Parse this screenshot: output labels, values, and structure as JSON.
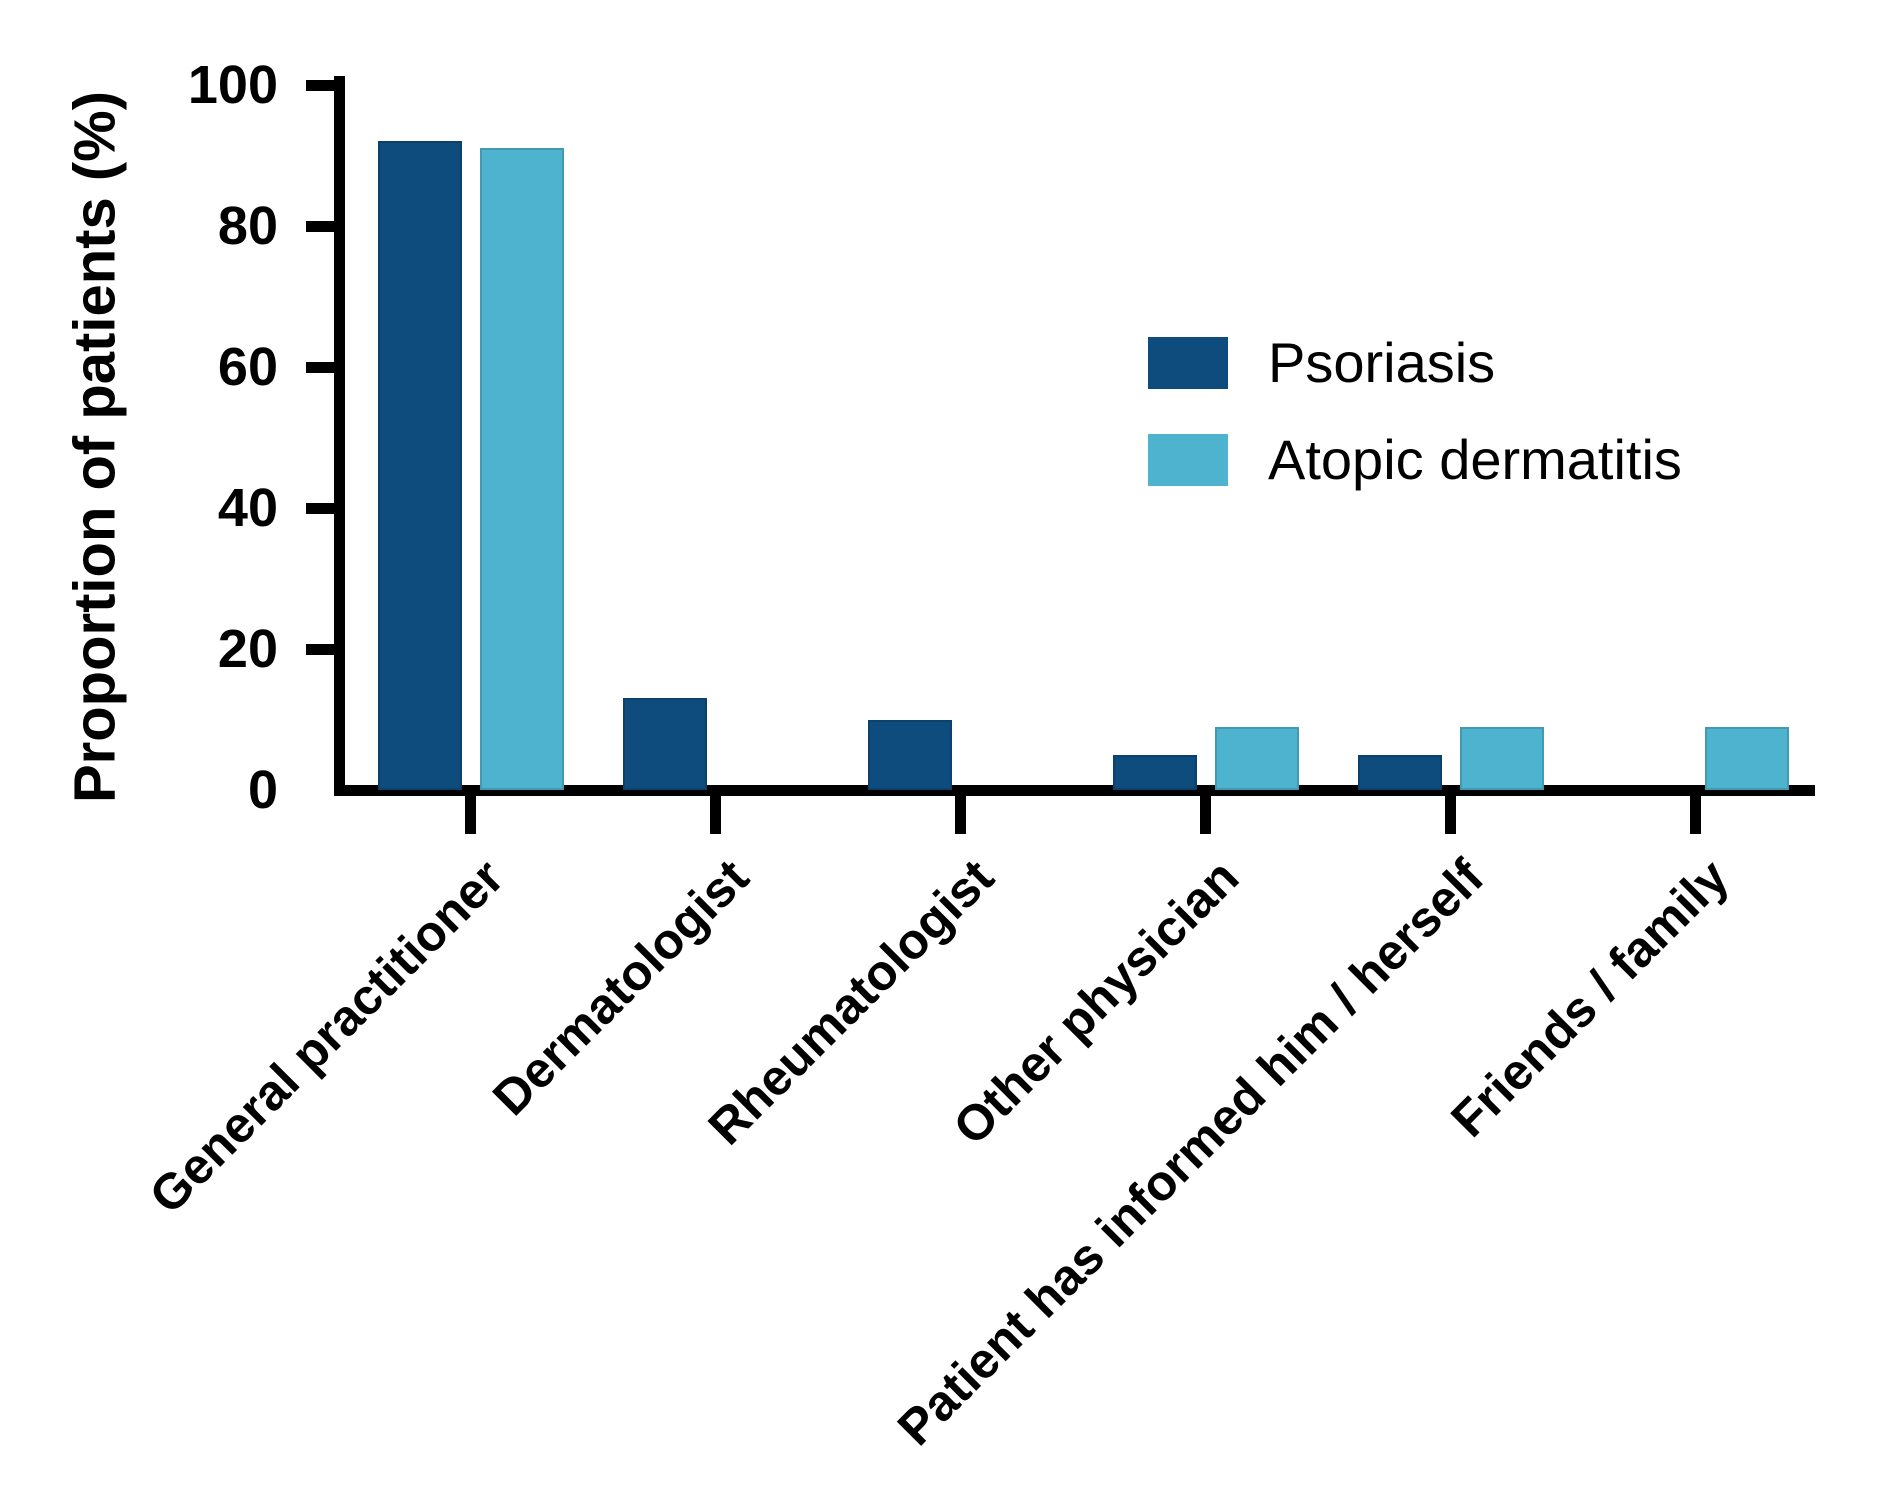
{
  "figure": {
    "background": "#ffffff",
    "axis_color": "#000000",
    "text_color": "#000000"
  },
  "chart_data": {
    "type": "bar",
    "title": "",
    "xlabel": "",
    "ylabel": "Proportion of patients (%)",
    "categories": [
      "General practitioner",
      "Dermatologist",
      "Rheumatologist",
      "Other physician",
      "Patient has informed him / herself",
      "Friends / family"
    ],
    "series": [
      {
        "name": "Psoriasis",
        "color": "#0d4c7c",
        "values": [
          92,
          13,
          10,
          5,
          5,
          0
        ]
      },
      {
        "name": "Atopic dermatitis",
        "color": "#4db3ce",
        "values": [
          91,
          0,
          0,
          9,
          9,
          9
        ]
      }
    ],
    "ylim": [
      0,
      100
    ],
    "yticks": [
      0,
      20,
      40,
      60,
      80,
      100
    ],
    "grid": false,
    "legend_position": "upper right"
  }
}
